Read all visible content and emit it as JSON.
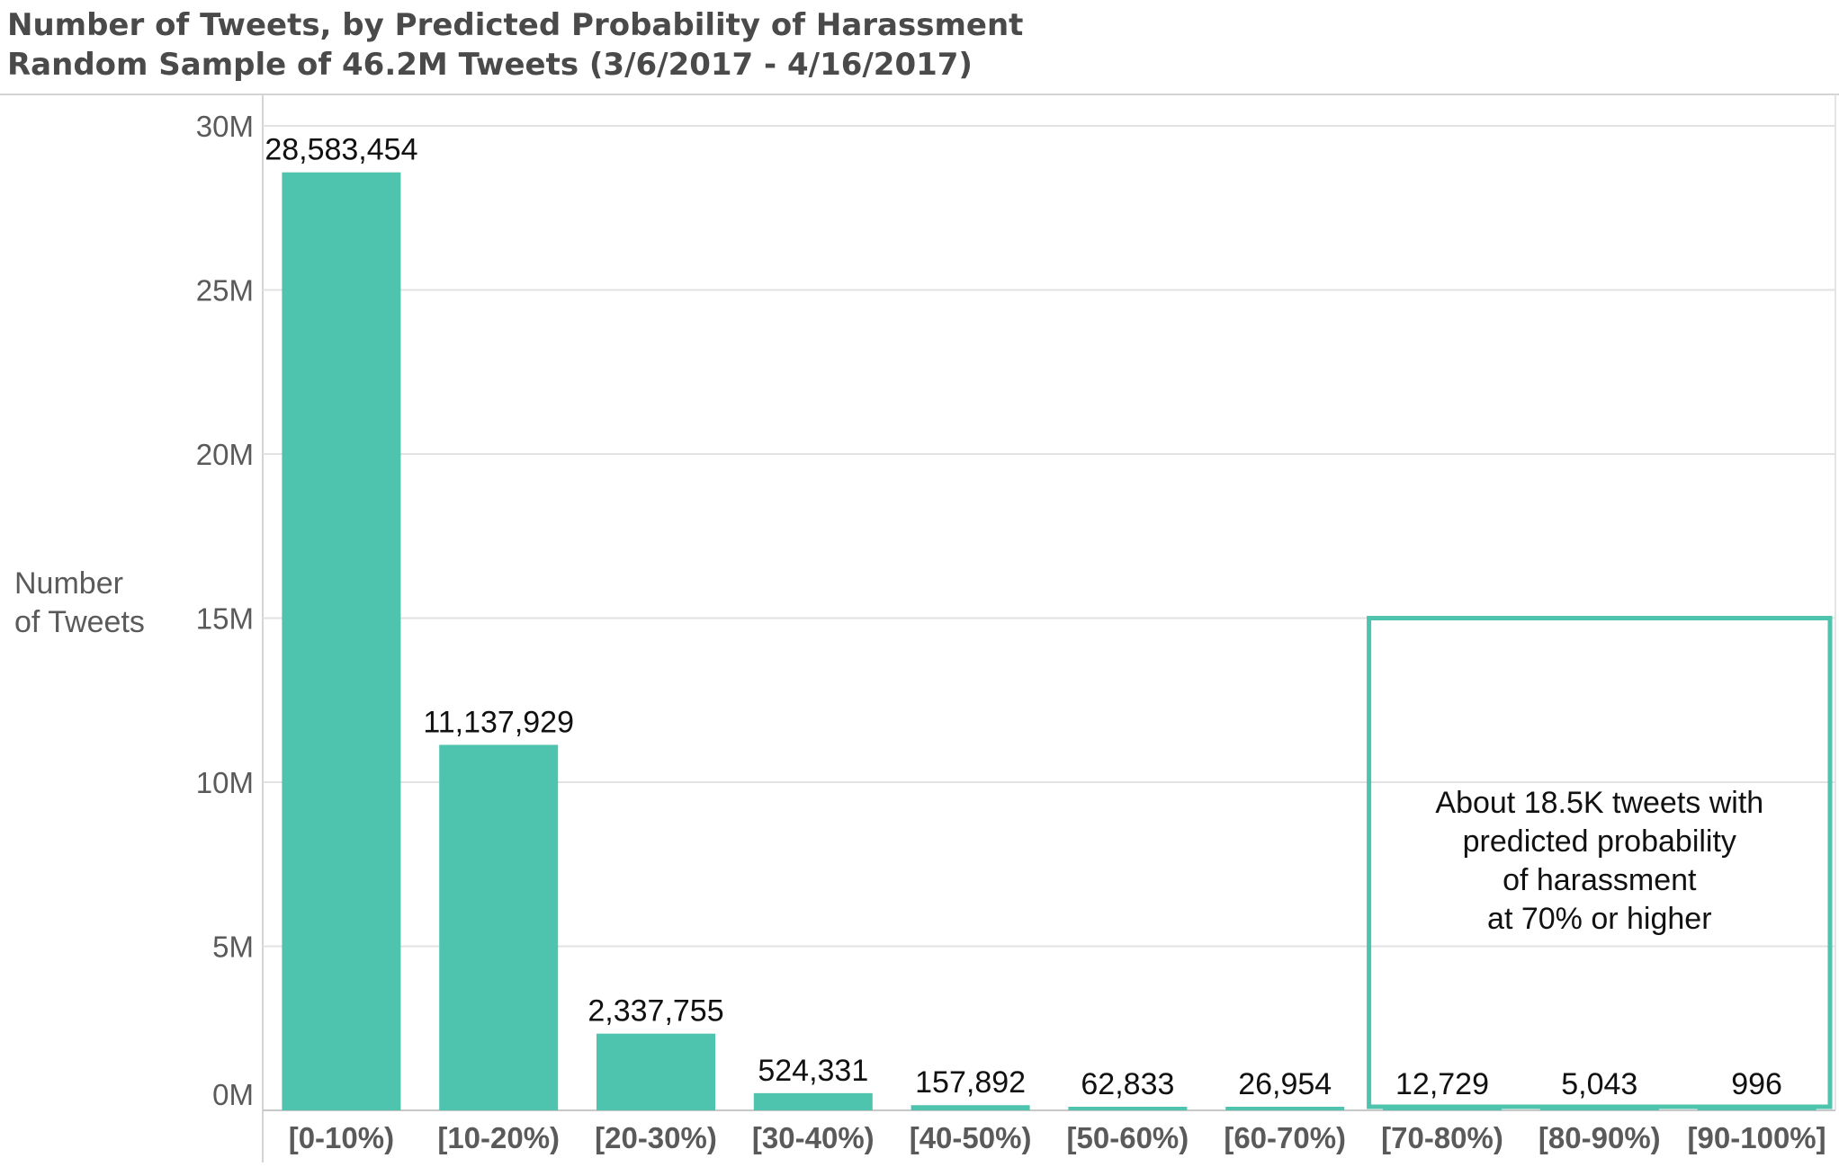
{
  "title": "Number of Tweets, by Predicted Probability of Harassment",
  "subtitle": "Random Sample of 46.2M Tweets (3/6/2017 - 4/16/2017)",
  "chart_data": {
    "type": "bar",
    "title": "Number of Tweets, by Predicted Probability of Harassment",
    "subtitle": "Random Sample of 46.2M Tweets (3/6/2017 - 4/16/2017)",
    "xlabel": "",
    "ylabel": "Number of Tweets",
    "ylabel_lines": [
      "Number",
      "of Tweets"
    ],
    "ylim": [
      0,
      30000000
    ],
    "yticks": [
      0,
      5000000,
      10000000,
      15000000,
      20000000,
      25000000,
      30000000
    ],
    "ytick_labels": [
      "0M",
      "5M",
      "10M",
      "15M",
      "20M",
      "25M",
      "30M"
    ],
    "grid": true,
    "categories": [
      "[0-10%)",
      "[10-20%)",
      "[20-30%)",
      "[30-40%)",
      "[40-50%)",
      "[50-60%)",
      "[60-70%)",
      "[70-80%)",
      "[80-90%)",
      "[90-100%]"
    ],
    "values": [
      28583454,
      11137929,
      2337755,
      524331,
      157892,
      62833,
      26954,
      12729,
      5043,
      996
    ],
    "data_labels": [
      "28,583,454",
      "11,137,929",
      "2,337,755",
      "524,331",
      "157,892",
      "62,833",
      "26,954",
      "12,729",
      "5,043",
      "996"
    ],
    "bar_color": "#4ec3ad",
    "annotation": {
      "lines": [
        "About 18.5K tweets with",
        "predicted probability",
        "of harassment",
        "at 70% or higher"
      ],
      "categories_spanned": [
        "[70-80%)",
        "[90-100%]"
      ],
      "y_top": 15000000,
      "box_color": "#4ec3ad"
    }
  }
}
